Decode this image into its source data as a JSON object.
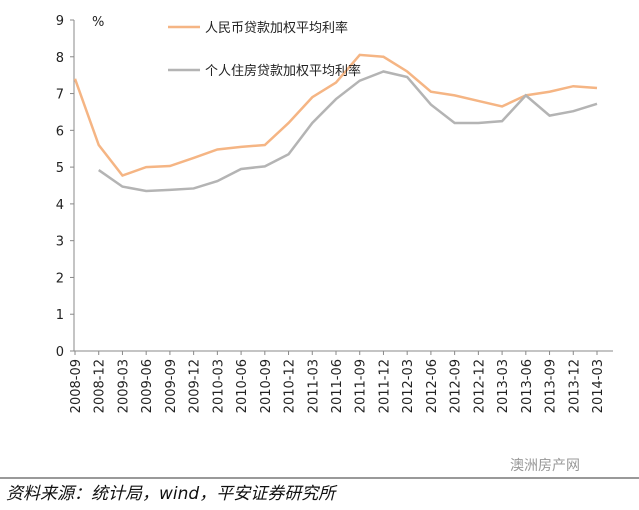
{
  "chart_data": {
    "type": "line",
    "y_label": "%",
    "categories": [
      "2008-09",
      "2008-12",
      "2009-03",
      "2009-06",
      "2009-09",
      "2009-12",
      "2010-03",
      "2010-06",
      "2010-09",
      "2010-12",
      "2011-03",
      "2011-06",
      "2011-09",
      "2011-12",
      "2012-03",
      "2012-06",
      "2012-09",
      "2012-12",
      "2013-03",
      "2013-06",
      "2013-09",
      "2013-12",
      "2014-03"
    ],
    "series": [
      {
        "name": "人民币贷款加权平均利率",
        "color": "#f5b584",
        "values": [
          7.4,
          5.6,
          4.77,
          5.0,
          5.03,
          5.25,
          5.48,
          5.55,
          5.6,
          6.2,
          6.9,
          7.3,
          8.05,
          8.0,
          7.6,
          7.05,
          6.95,
          6.8,
          6.65,
          6.95,
          7.05,
          7.2,
          7.15
        ]
      },
      {
        "name": "个人住房贷款加权平均利率",
        "color": "#b4b4b4",
        "values": [
          null,
          4.92,
          4.47,
          4.35,
          4.38,
          4.42,
          4.62,
          4.95,
          5.02,
          5.35,
          6.2,
          6.85,
          7.35,
          7.6,
          7.45,
          6.7,
          6.2,
          6.2,
          6.25,
          6.95,
          6.4,
          6.52,
          6.72
        ]
      }
    ],
    "ylim": [
      0,
      9
    ],
    "yticks": [
      0,
      1,
      2,
      3,
      4,
      5,
      6,
      7,
      8,
      9
    ],
    "source": "资料来源：统计局，wind，平安证券研究所",
    "watermark": "澳洲房产网"
  }
}
